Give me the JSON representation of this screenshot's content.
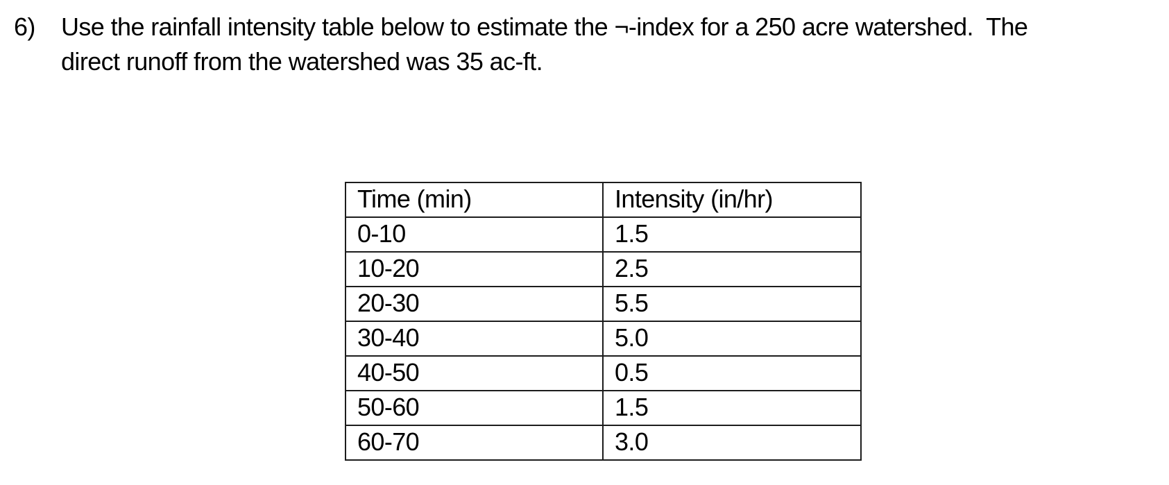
{
  "problem": {
    "number": "6)",
    "text_lines": [
      "Use the rainfall intensity table below to estimate the ¬-index for a 250 acre watershed.  The",
      "direct runoff from the watershed was 35 ac-ft."
    ]
  },
  "table": {
    "headers": [
      "Time (min)",
      "Intensity (in/hr)"
    ],
    "rows": [
      {
        "time": "0-10",
        "intensity": "1.5"
      },
      {
        "time": "10-20",
        "intensity": "2.5"
      },
      {
        "time": "20-30",
        "intensity": "5.5"
      },
      {
        "time": "30-40",
        "intensity": "5.0"
      },
      {
        "time": "40-50",
        "intensity": "0.5"
      },
      {
        "time": "50-60",
        "intensity": "1.5"
      },
      {
        "time": "60-70",
        "intensity": "3.0"
      }
    ]
  },
  "colors": {
    "text": "#000000",
    "table_border": "#1c1c1c",
    "background": "#ffffff"
  }
}
